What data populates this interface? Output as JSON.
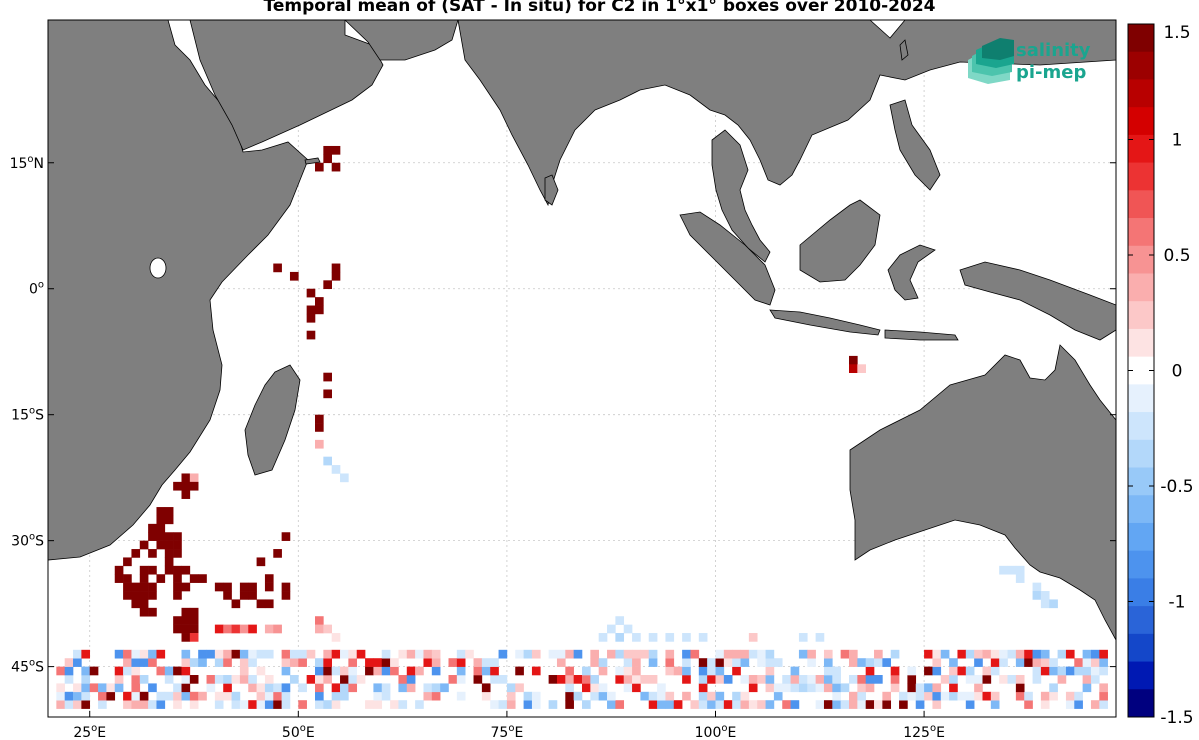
{
  "title": "Temporal mean of (SAT - In situ) for C2 in 1°x1° boxes over 2010-2024",
  "logo": {
    "line1": "salinity",
    "line2": "pi-mep"
  },
  "x_ticks": [
    {
      "lon": 25,
      "num": "25",
      "unit": "o",
      "hemi": "E"
    },
    {
      "lon": 50,
      "num": "50",
      "unit": "o",
      "hemi": "E"
    },
    {
      "lon": 75,
      "num": "75",
      "unit": "o",
      "hemi": "E"
    },
    {
      "lon": 100,
      "num": "100",
      "unit": "o",
      "hemi": "E"
    },
    {
      "lon": 125,
      "num": "125",
      "unit": "o",
      "hemi": "E"
    }
  ],
  "y_ticks": [
    {
      "lat": 15,
      "num": "15",
      "unit": "o",
      "hemi": "N"
    },
    {
      "lat": 0,
      "num": "0",
      "unit": "o",
      "hemi": ""
    },
    {
      "lat": -15,
      "num": "15",
      "unit": "o",
      "hemi": "S"
    },
    {
      "lat": -30,
      "num": "30",
      "unit": "o",
      "hemi": "S"
    },
    {
      "lat": -45,
      "num": "45",
      "unit": "o",
      "hemi": "S"
    }
  ],
  "colorbar": {
    "min": -1.5,
    "max": 1.5,
    "tick_values": [
      1.5,
      1,
      0.5,
      0,
      -0.5,
      -1,
      -1.5
    ],
    "tick_labels": [
      "1.5",
      "1",
      "0.5",
      "0",
      "-0.5",
      "-1",
      "-1.5"
    ],
    "colors": [
      "#00007f",
      "#0019b3",
      "#1447c9",
      "#2a64d8",
      "#3a7ee6",
      "#4d93ee",
      "#62a6f3",
      "#7db8f6",
      "#98c9f8",
      "#b3d8fa",
      "#cde5fc",
      "#e6f1fd",
      "#ffffff",
      "#fde3e3",
      "#fcc8c8",
      "#faaeae",
      "#f79393",
      "#f47575",
      "#f05555",
      "#ec3333",
      "#e41616",
      "#d40000",
      "#b80000",
      "#9c0000",
      "#7f0000"
    ]
  },
  "colors": {
    "land": "#7f7f7f",
    "coast": "#000000",
    "grid": "#c8c8c8",
    "ocean": "#ffffff"
  },
  "map_extent": {
    "lon": [
      20,
      148
    ],
    "lat": [
      -51,
      32
    ]
  },
  "chart_data": {
    "type": "heatmap",
    "description_units": "cells: [lon, lat, value] in degrees / psu, value clipped to [-1.5,1.5]",
    "cells": [
      [
        53,
        16,
        1.5
      ],
      [
        54,
        16,
        1.5
      ],
      [
        53,
        15,
        1.5
      ],
      [
        52,
        14,
        1.5
      ],
      [
        54,
        14,
        1.5
      ],
      [
        47,
        2,
        1.5
      ],
      [
        49,
        1,
        1.5
      ],
      [
        54,
        2,
        1.5
      ],
      [
        54,
        1,
        1.5
      ],
      [
        53,
        0,
        1.5
      ],
      [
        51,
        -1,
        1.5
      ],
      [
        52,
        -2,
        1.5
      ],
      [
        52,
        -3,
        1.5
      ],
      [
        51,
        -3,
        1.5
      ],
      [
        51,
        -4,
        1.5
      ],
      [
        51,
        -6,
        1.5
      ],
      [
        53,
        -11,
        1.5
      ],
      [
        53,
        -13,
        1.5
      ],
      [
        52,
        -16,
        1.5
      ],
      [
        52,
        -17,
        1.5
      ],
      [
        52,
        -19,
        0.4
      ],
      [
        53,
        -21,
        -0.4
      ],
      [
        54,
        -22,
        -0.3
      ],
      [
        55,
        -23,
        -0.3
      ],
      [
        116,
        -9,
        1.5
      ],
      [
        116,
        -10,
        1.2
      ],
      [
        117,
        -10,
        0.2
      ],
      [
        36,
        -23,
        1.5
      ],
      [
        37,
        -23,
        0.3
      ],
      [
        35,
        -24,
        1.5
      ],
      [
        36,
        -24,
        1.5
      ],
      [
        37,
        -24,
        1.5
      ],
      [
        36,
        -25,
        1.5
      ],
      [
        33,
        -27,
        1.5
      ],
      [
        34,
        -27,
        1.5
      ],
      [
        33,
        -28,
        1.5
      ],
      [
        34,
        -28,
        1.5
      ],
      [
        32,
        -29,
        1.5
      ],
      [
        33,
        -29,
        1.5
      ],
      [
        32,
        -30,
        1.5
      ],
      [
        33,
        -30,
        1.5
      ],
      [
        34,
        -30,
        1.5
      ],
      [
        35,
        -30,
        1.5
      ],
      [
        31,
        -31,
        1.5
      ],
      [
        33,
        -31,
        1.5
      ],
      [
        34,
        -31,
        1.5
      ],
      [
        35,
        -31,
        1.5
      ],
      [
        30,
        -32,
        1.5
      ],
      [
        32,
        -32,
        1.5
      ],
      [
        34,
        -32,
        1.5
      ],
      [
        35,
        -32,
        1.5
      ],
      [
        29,
        -33,
        1.5
      ],
      [
        34,
        -33,
        1.5
      ],
      [
        28,
        -34,
        1.5
      ],
      [
        31,
        -34,
        1.5
      ],
      [
        32,
        -34,
        1.5
      ],
      [
        34,
        -34,
        1.5
      ],
      [
        35,
        -34,
        1.5
      ],
      [
        36,
        -34,
        1.5
      ],
      [
        28,
        -35,
        1.5
      ],
      [
        29,
        -35,
        1.5
      ],
      [
        31,
        -35,
        1.5
      ],
      [
        33,
        -35,
        1.5
      ],
      [
        35,
        -35,
        1.5
      ],
      [
        37,
        -35,
        1.5
      ],
      [
        38,
        -35,
        1.5
      ],
      [
        29,
        -36,
        1.5
      ],
      [
        30,
        -36,
        1.5
      ],
      [
        31,
        -36,
        1.5
      ],
      [
        32,
        -36,
        1.5
      ],
      [
        35,
        -36,
        1.5
      ],
      [
        36,
        -36,
        1.5
      ],
      [
        40,
        -36,
        1.5
      ],
      [
        41,
        -36,
        1.5
      ],
      [
        43,
        -36,
        1.5
      ],
      [
        44,
        -36,
        1.5
      ],
      [
        46,
        -36,
        1.5
      ],
      [
        48,
        -36,
        1.5
      ],
      [
        29,
        -37,
        1.5
      ],
      [
        30,
        -37,
        1.5
      ],
      [
        31,
        -37,
        1.5
      ],
      [
        32,
        -37,
        1.5
      ],
      [
        35,
        -37,
        1.5
      ],
      [
        41,
        -37,
        1.5
      ],
      [
        43,
        -37,
        1.5
      ],
      [
        44,
        -37,
        1.5
      ],
      [
        48,
        -37,
        1.5
      ],
      [
        30,
        -38,
        1.5
      ],
      [
        31,
        -38,
        1.5
      ],
      [
        42,
        -38,
        1.5
      ],
      [
        45,
        -38,
        1.5
      ],
      [
        46,
        -38,
        1.5
      ],
      [
        31,
        -39,
        1.5
      ],
      [
        32,
        -39,
        1.5
      ],
      [
        36,
        -39,
        1.5
      ],
      [
        37,
        -39,
        1.5
      ],
      [
        35,
        -40,
        1.5
      ],
      [
        36,
        -40,
        1.5
      ],
      [
        37,
        -40,
        1.5
      ],
      [
        35,
        -41,
        1.5
      ],
      [
        36,
        -41,
        1.5
      ],
      [
        37,
        -41,
        1.5
      ],
      [
        48,
        -30,
        1.5
      ],
      [
        45,
        -33,
        1.5
      ],
      [
        47,
        -32,
        1.5
      ],
      [
        46,
        -35,
        1.5
      ],
      [
        36,
        -42,
        1.5
      ],
      [
        37,
        -42,
        0.8
      ],
      [
        40,
        -41,
        0.9
      ],
      [
        41,
        -41,
        0.6
      ],
      [
        42,
        -41,
        0.8
      ],
      [
        43,
        -41,
        0.5
      ],
      [
        44,
        -41,
        0.9
      ],
      [
        46,
        -41,
        0.3
      ],
      [
        47,
        -41,
        0.5
      ],
      [
        52,
        -40,
        0.6
      ],
      [
        52,
        -41,
        0.4
      ],
      [
        53,
        -41,
        0.2
      ],
      [
        54,
        -42,
        0.1
      ],
      [
        134,
        -34,
        -0.3
      ],
      [
        135,
        -34,
        -0.2
      ],
      [
        136,
        -34,
        -0.3
      ],
      [
        136,
        -35,
        -0.2
      ],
      [
        138,
        -36,
        -0.3
      ],
      [
        138,
        -37,
        -0.4
      ],
      [
        139,
        -37,
        -0.3
      ],
      [
        139,
        -38,
        -0.3
      ],
      [
        140,
        -38,
        -0.4
      ],
      [
        88,
        -40,
        -0.2
      ],
      [
        87,
        -41,
        -0.3
      ],
      [
        89,
        -41,
        -0.2
      ],
      [
        86,
        -42,
        -0.3
      ],
      [
        88,
        -42,
        -0.4
      ],
      [
        90,
        -42,
        -0.2
      ],
      [
        92,
        -42,
        -0.3
      ],
      [
        94,
        -42,
        -0.2
      ],
      [
        96,
        -42,
        -0.2
      ],
      [
        98,
        -42,
        -0.3
      ],
      [
        104,
        -42,
        0.2
      ],
      [
        110,
        -42,
        -0.2
      ],
      [
        112,
        -42,
        -0.2
      ]
    ],
    "band": {
      "lat_from": -50,
      "lat_to": -43,
      "lon_from": 21,
      "lon_to": 147
    }
  }
}
